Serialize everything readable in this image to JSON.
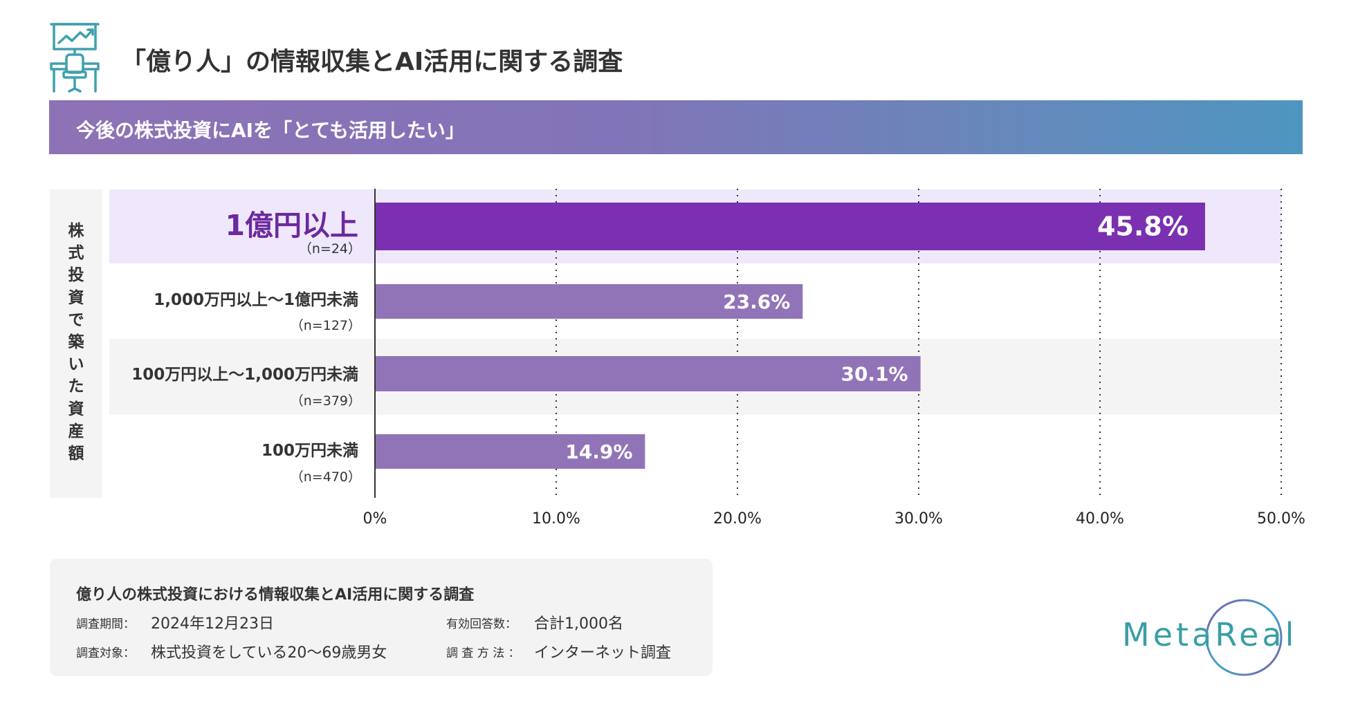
{
  "header": {
    "icon": "presentation-desk-icon",
    "title": "「億り人」の情報収集とAI活用に関する調査"
  },
  "banner": {
    "text": "今後の株式投資にAIを「とても活用したい」"
  },
  "group_label": [
    "株",
    "式",
    "投",
    "資",
    "で",
    "築",
    "い",
    "た",
    "資",
    "産",
    "額"
  ],
  "colors": {
    "highlight_bar": "#7a30b0",
    "bar": "#9174b8",
    "highlight_band": "#efe8fc",
    "alt_band": "#f4f4f4",
    "highlight_label": "#6c2a9e",
    "icon": "#3fa0ae",
    "logo_text": "#3a9ea6"
  },
  "chart_data": {
    "type": "bar",
    "orientation": "horizontal",
    "title": "今後の株式投資にAIを「とても活用したい」",
    "ylabel": "株式投資で築いた資産額",
    "xlabel": "",
    "categories": [
      {
        "label_parts": [
          "1億円以上"
        ],
        "n": "（n=24）",
        "highlight": true
      },
      {
        "label_parts": [
          "1,000万円以上～1億円未満"
        ],
        "n": "（n=127）",
        "highlight": false
      },
      {
        "label_parts": [
          "100万円以上～1,000万円未満"
        ],
        "n": "（n=379）",
        "highlight": false
      },
      {
        "label_parts": [
          "100万円未満"
        ],
        "n": "（n=470）",
        "highlight": false
      }
    ],
    "labels": [
      "1億円以上",
      "1,000万円以上～1億円未満",
      "100万円以上～1,000万円未満",
      "100万円未満"
    ],
    "values": [
      45.8,
      23.6,
      30.1,
      14.9
    ],
    "value_labels": [
      "45.8%",
      "23.6%",
      "30.1%",
      "14.9%"
    ],
    "xlim": [
      0,
      50
    ],
    "xticks": [
      0,
      10,
      20,
      30,
      40,
      50
    ],
    "xtick_labels": [
      "0%",
      "10.0%",
      "20.0%",
      "30.0%",
      "40.0%",
      "50.0%"
    ],
    "grid": "vertical dotted",
    "legend": "none"
  },
  "footer": {
    "title": "億り人の株式投資における情報収集とAI活用に関する調査",
    "period_label": "調査期間：",
    "period_value": "2024年12月23日",
    "target_label": "調査対象：",
    "target_value": "株式投資をしている20～69歳男女",
    "responses_label": "有効回答数：",
    "responses_value": "合計1,000名",
    "method_label": "調 査 方 法 ：",
    "method_value": "インターネット調査"
  },
  "logo": {
    "text": "MetaReal"
  }
}
